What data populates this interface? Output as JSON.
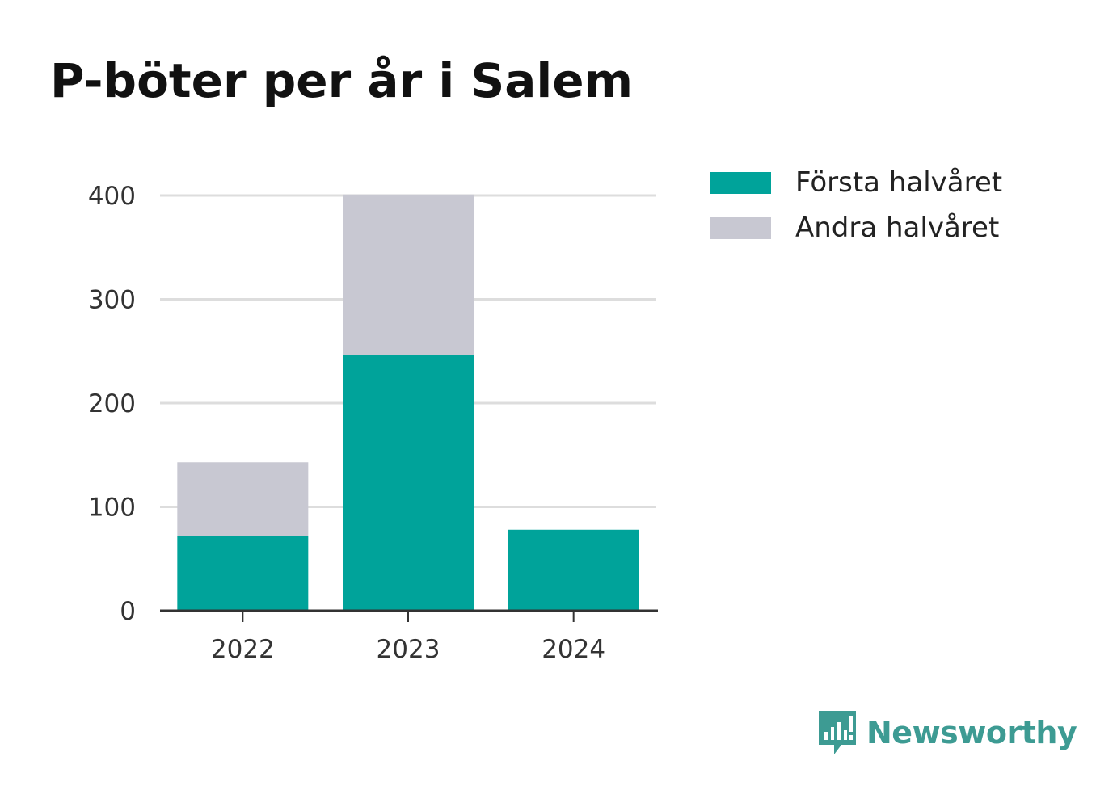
{
  "title": "P-böter per år i Salem",
  "chart_data": {
    "type": "bar",
    "stacked": true,
    "categories": [
      "2022",
      "2023",
      "2024"
    ],
    "series": [
      {
        "name": "Första halvåret",
        "color": "#00a39a",
        "values": [
          72,
          246,
          78
        ]
      },
      {
        "name": "Andra halvåret",
        "color": "#c8c8d2",
        "values": [
          71,
          155,
          0
        ]
      }
    ],
    "ylim": [
      0,
      400
    ],
    "yticks": [
      0,
      100,
      200,
      300,
      400
    ],
    "grid": true,
    "legend": "top-right"
  },
  "legend": {
    "items": [
      {
        "label": "Första halvåret",
        "color": "#00a39a"
      },
      {
        "label": "Andra halvåret",
        "color": "#c8c8d2"
      }
    ]
  },
  "brand": {
    "name": "Newsworthy",
    "color": "#3d9b93",
    "icon": "newsworthy-logo-icon"
  }
}
